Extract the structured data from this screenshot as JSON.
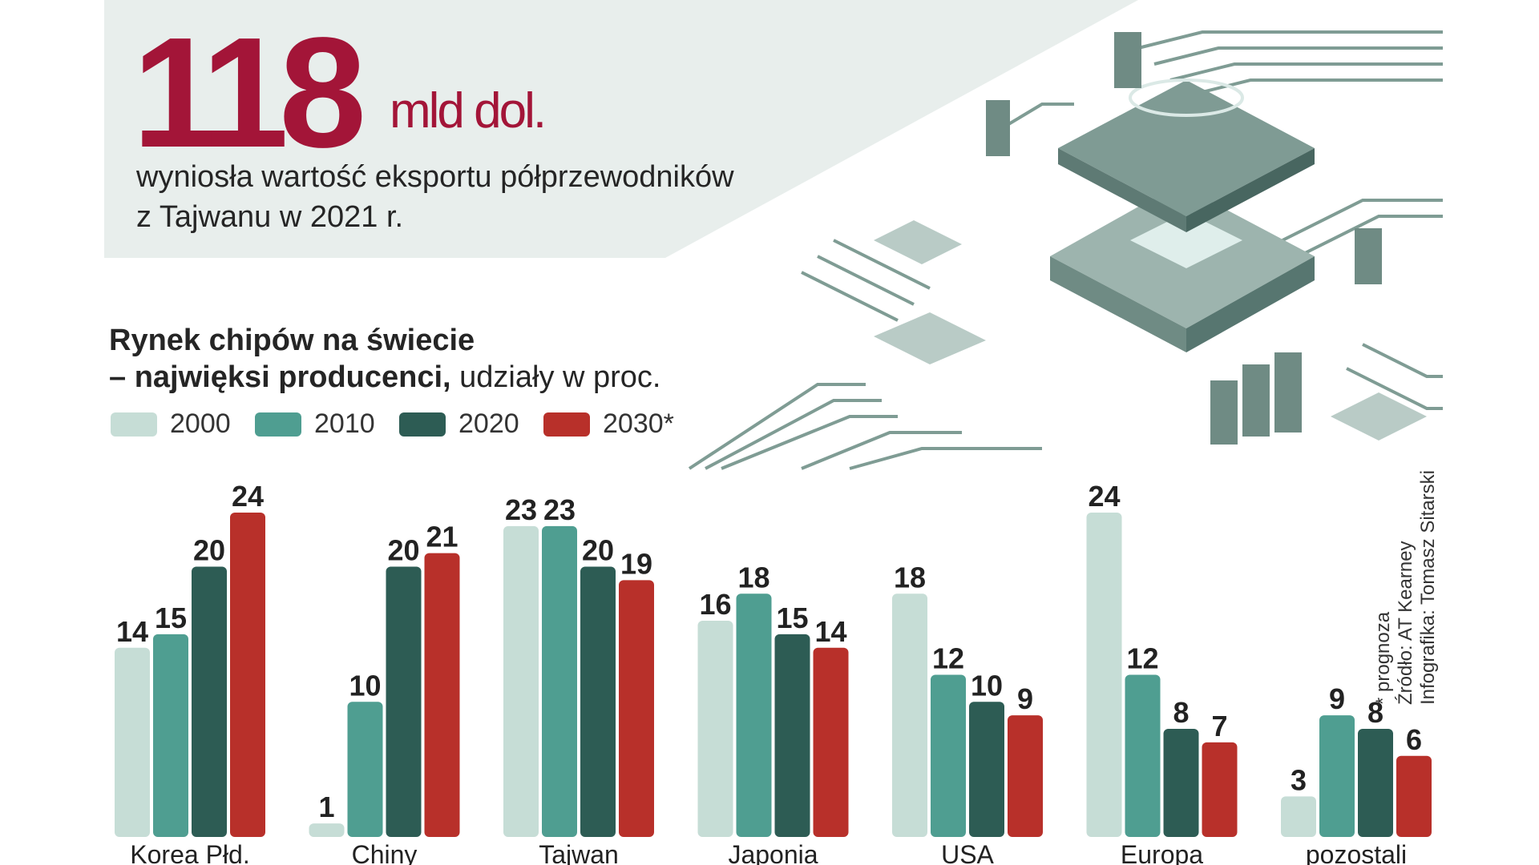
{
  "headline": {
    "value": "118",
    "unit": "mld dol.",
    "description_line1": "wyniosła wartość eksportu półprzewodników",
    "description_line2": "z Tajwanu w 2021 r."
  },
  "chart_data": {
    "type": "bar",
    "title_line1": "Rynek chipów na świecie",
    "title_line2_bold": "– najwięksi producenci,",
    "title_line2_regular": " udziały w proc.",
    "categories": [
      "Korea Płd.",
      "Chiny",
      "Tajwan",
      "Japonia",
      "USA",
      "Europa",
      "pozostali"
    ],
    "series": [
      {
        "name": "2000",
        "color": "#c6ddd6",
        "values": [
          14,
          1,
          23,
          16,
          18,
          24,
          3
        ]
      },
      {
        "name": "2010",
        "color": "#4f9e91",
        "values": [
          15,
          10,
          23,
          18,
          12,
          12,
          9
        ]
      },
      {
        "name": "2020",
        "color": "#2d5c54",
        "values": [
          20,
          20,
          20,
          15,
          10,
          8,
          8
        ]
      },
      {
        "name": "2030*",
        "color": "#b8302a",
        "values": [
          24,
          21,
          19,
          14,
          9,
          7,
          6
        ]
      }
    ],
    "ylim": [
      0,
      24
    ],
    "xlabel": "",
    "ylabel": "",
    "grid": false,
    "legend_position": "top-left"
  },
  "footnotes": {
    "forecast": "* prognoza",
    "source": "Źródło: AT Kearney",
    "infographic": "Infografika: Tomasz Sitarski"
  },
  "colors": {
    "accent": "#a31538",
    "banner": "#e8eeec",
    "circuit": "#7f9c94"
  }
}
